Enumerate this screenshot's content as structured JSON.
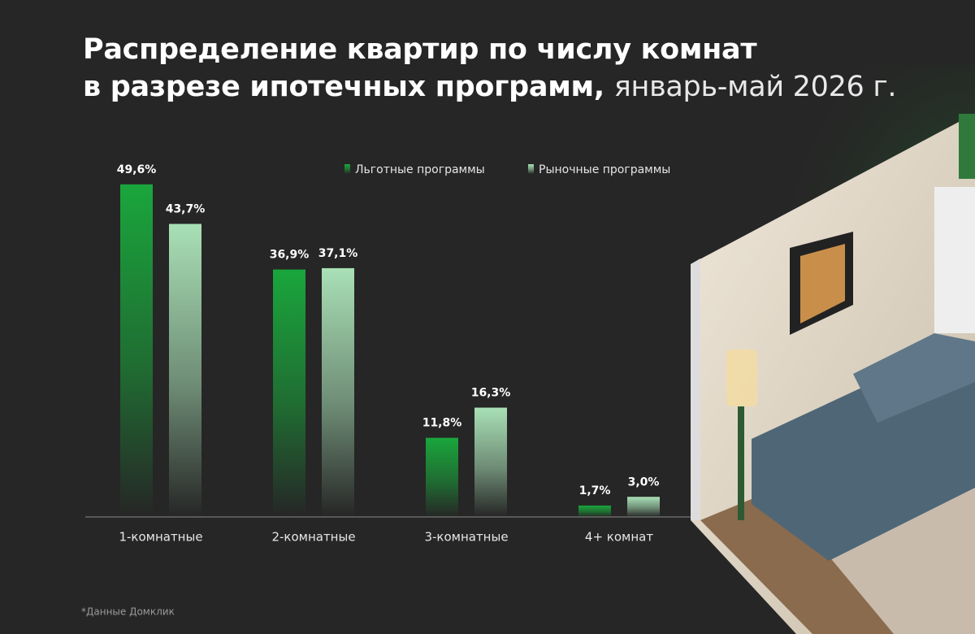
{
  "chart_data": {
    "type": "bar",
    "title": [
      "Распределение квартир по числу комнат",
      "в разрезе ипотечных программ,"
    ],
    "subtitle": "январь-май 2026 г.",
    "categories": [
      "1-комнатные",
      "2-комнатные",
      "3-комнатные",
      "4+ комнат"
    ],
    "series": [
      {
        "name": "Льготные программы",
        "color": "#1aa63c",
        "values": [
          49.6,
          36.9,
          11.8,
          1.7
        ],
        "value_labels": [
          "49,6%",
          "36,9%",
          "11,8%",
          "1,7%"
        ]
      },
      {
        "name": "Рыночные программы",
        "color": "#a9e0b6",
        "values": [
          43.7,
          37.1,
          16.3,
          3.0
        ],
        "value_labels": [
          "43,7%",
          "37,1%",
          "16,3%",
          "3,0%"
        ]
      }
    ],
    "footnote": "*Данные Домклик"
  }
}
